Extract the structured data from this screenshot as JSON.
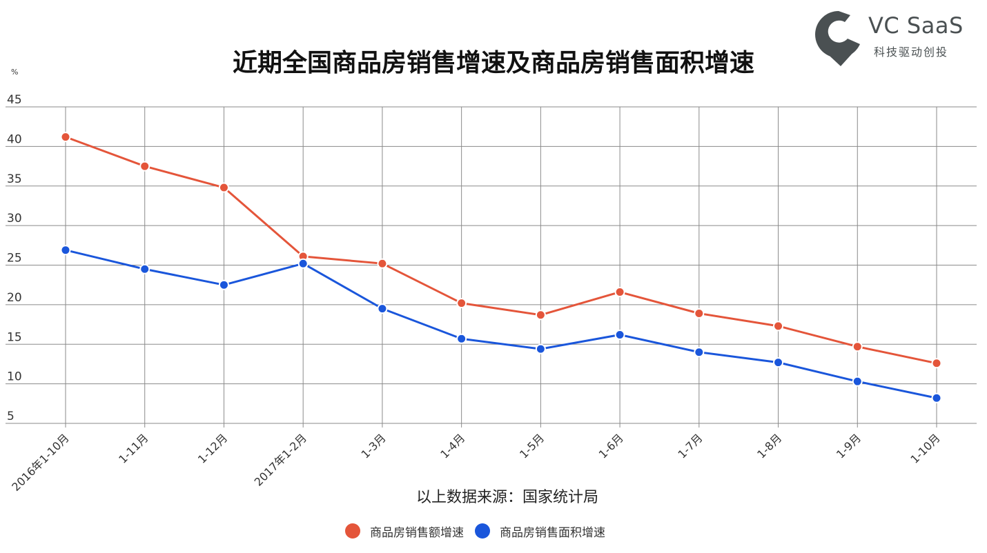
{
  "title": "近期全国商品房销售增速及商品房销售面积增速",
  "logo": {
    "name": "VC SaaS",
    "tagline": "科技驱动创投",
    "color": "#4a5052"
  },
  "unit": "%",
  "source": "以上数据来源：国家统计局",
  "chart_data": {
    "type": "line",
    "categories": [
      "2016年1-10月",
      "1-11月",
      "1-12月",
      "2017年1-2月",
      "1-3月",
      "1-4月",
      "1-5月",
      "1-6月",
      "1-7月",
      "1-8月",
      "1-9月",
      "1-10月"
    ],
    "ylim": [
      5,
      45
    ],
    "yticks": [
      5,
      10,
      15,
      20,
      25,
      30,
      35,
      40,
      45
    ],
    "grid": true,
    "legend_position": "bottom",
    "series": [
      {
        "name": "商品房销售额增速",
        "color": "#e4553a",
        "values": [
          41.2,
          37.5,
          34.8,
          26.1,
          25.2,
          20.2,
          18.7,
          21.6,
          18.9,
          17.3,
          14.7,
          12.6
        ]
      },
      {
        "name": "商品房销售面积增速",
        "color": "#1a56db",
        "values": [
          26.9,
          24.5,
          22.5,
          25.2,
          19.5,
          15.7,
          14.4,
          16.2,
          14.0,
          12.7,
          10.3,
          8.2
        ]
      }
    ]
  }
}
